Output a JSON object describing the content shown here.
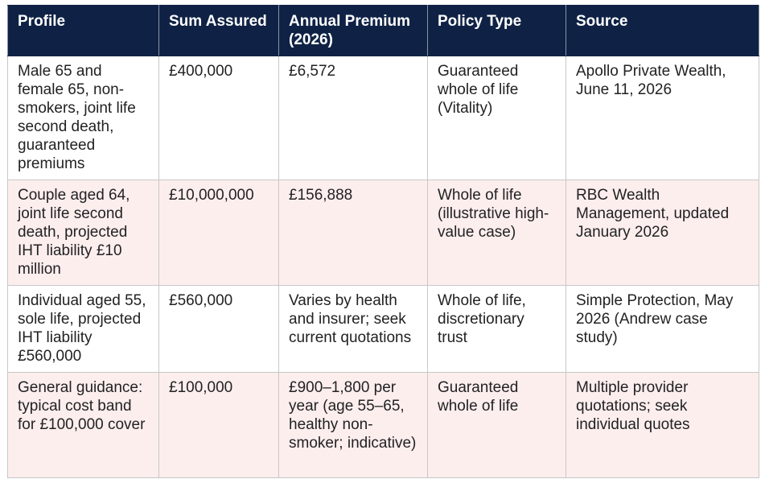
{
  "table": {
    "headers": [
      "Profile",
      "Sum Assured",
      "Annual Premium (2026)",
      "Policy Type",
      "Source"
    ],
    "rows": [
      {
        "profile": "Male 65 and female 65, non-smokers, joint life second death, guaranteed premiums",
        "sum_assured": "£400,000",
        "annual_premium": "£6,572",
        "policy_type": "Guaranteed whole of life (Vitality)",
        "source": "Apollo Private Wealth, June 11, 2026"
      },
      {
        "profile": "Couple aged 64, joint life second death, projected IHT liability £10 million",
        "sum_assured": "£10,000,000",
        "annual_premium": "£156,888",
        "policy_type": "Whole of life (illustrative high-value case)",
        "source": "RBC Wealth Management, updated January 2026"
      },
      {
        "profile": "Individual aged 55, sole life, projected IHT liability £560,000",
        "sum_assured": "£560,000",
        "annual_premium": "Varies by health and insurer; seek current quotations",
        "policy_type": "Whole of life, discretionary trust",
        "source": "Simple Protection, May 2026 (Andrew case study)"
      },
      {
        "profile": "General guidance: typical cost band for £100,000 cover",
        "sum_assured": "£100,000",
        "annual_premium": "£900–1,800 per year (age 55–65, healthy non-smoker; indicative)",
        "policy_type": "Guaranteed whole of life",
        "source": "Multiple provider quotations; seek individual quotes"
      }
    ]
  },
  "colors": {
    "header_bg": "#0f2245",
    "header_text": "#ffffff",
    "row_alt_bg": "#fdeeee",
    "border": "#c7c7c7"
  }
}
